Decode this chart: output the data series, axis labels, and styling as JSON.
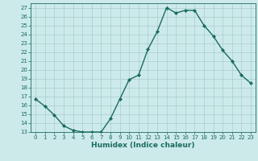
{
  "title": "",
  "xlabel": "Humidex (Indice chaleur)",
  "ylabel": "",
  "x": [
    0,
    1,
    2,
    3,
    4,
    5,
    6,
    7,
    8,
    9,
    10,
    11,
    12,
    13,
    14,
    15,
    16,
    17,
    18,
    19,
    20,
    21,
    22,
    23
  ],
  "y": [
    16.7,
    15.9,
    14.9,
    13.7,
    13.2,
    13.0,
    13.0,
    13.0,
    14.5,
    16.7,
    18.9,
    19.4,
    22.3,
    24.3,
    27.0,
    26.4,
    26.7,
    26.7,
    25.0,
    23.8,
    22.2,
    21.0,
    19.4,
    18.5
  ],
  "line_color": "#1a6b5e",
  "marker": "D",
  "marker_size": 2.2,
  "line_width": 1.0,
  "bg_color": "#cdeaea",
  "grid_color": "#a8cccc",
  "tick_color": "#1a6b5e",
  "label_color": "#1a6b5e",
  "ylim": [
    13,
    27.5
  ],
  "xlim": [
    -0.5,
    23.5
  ],
  "yticks": [
    13,
    14,
    15,
    16,
    17,
    18,
    19,
    20,
    21,
    22,
    23,
    24,
    25,
    26,
    27
  ],
  "xticks": [
    0,
    1,
    2,
    3,
    4,
    5,
    6,
    7,
    8,
    9,
    10,
    11,
    12,
    13,
    14,
    15,
    16,
    17,
    18,
    19,
    20,
    21,
    22,
    23
  ],
  "axis_fontsize": 6.5,
  "tick_fontsize": 5.0
}
